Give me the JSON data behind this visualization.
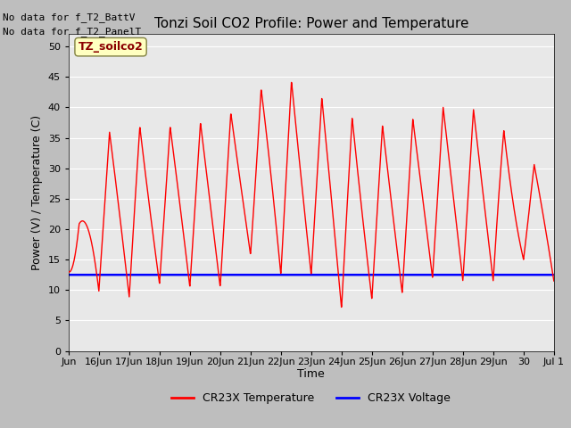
{
  "title": "Tonzi Soil CO2 Profile: Power and Temperature",
  "xlabel": "Time",
  "ylabel": "Power (V) / Temperature (C)",
  "ylim": [
    0,
    52
  ],
  "yticks": [
    0,
    5,
    10,
    15,
    20,
    25,
    30,
    35,
    40,
    45,
    50
  ],
  "no_data_text_1": "No data for f_T2_BattV",
  "no_data_text_2": "No data for f_T2_PanelT",
  "legend_label_1": "TZ_soilco2",
  "legend_label_2": "CR23X Temperature",
  "legend_label_3": "CR23X Voltage",
  "temp_color": "#FF0000",
  "voltage_color": "#0000FF",
  "fig_bg_color": "#BEBEBE",
  "plot_bg_color": "#E8E8E8",
  "voltage_value": 12.5,
  "x_tick_labels": [
    "Jun",
    "16Jun",
    "17Jun",
    "18Jun",
    "19Jun",
    "20Jun",
    "21Jun",
    "22Jun",
    "23Jun",
    "24Jun",
    "25Jun",
    "26Jun",
    "27Jun",
    "28Jun",
    "29Jun",
    "30",
    "Jul 1"
  ],
  "peaks": [
    13,
    35.5,
    37,
    36.5,
    37.5,
    37.5,
    42,
    45,
    43,
    39,
    37,
    37,
    40,
    40,
    39,
    31,
    30
  ],
  "troughs": [
    13,
    9.8,
    8.8,
    11,
    10.5,
    10.5,
    15.8,
    12.5,
    12.5,
    7,
    8.5,
    9.5,
    12,
    11.5,
    11.5,
    15,
    11.5
  ],
  "peak_phase": 0.65,
  "trough_phase": 0.1
}
